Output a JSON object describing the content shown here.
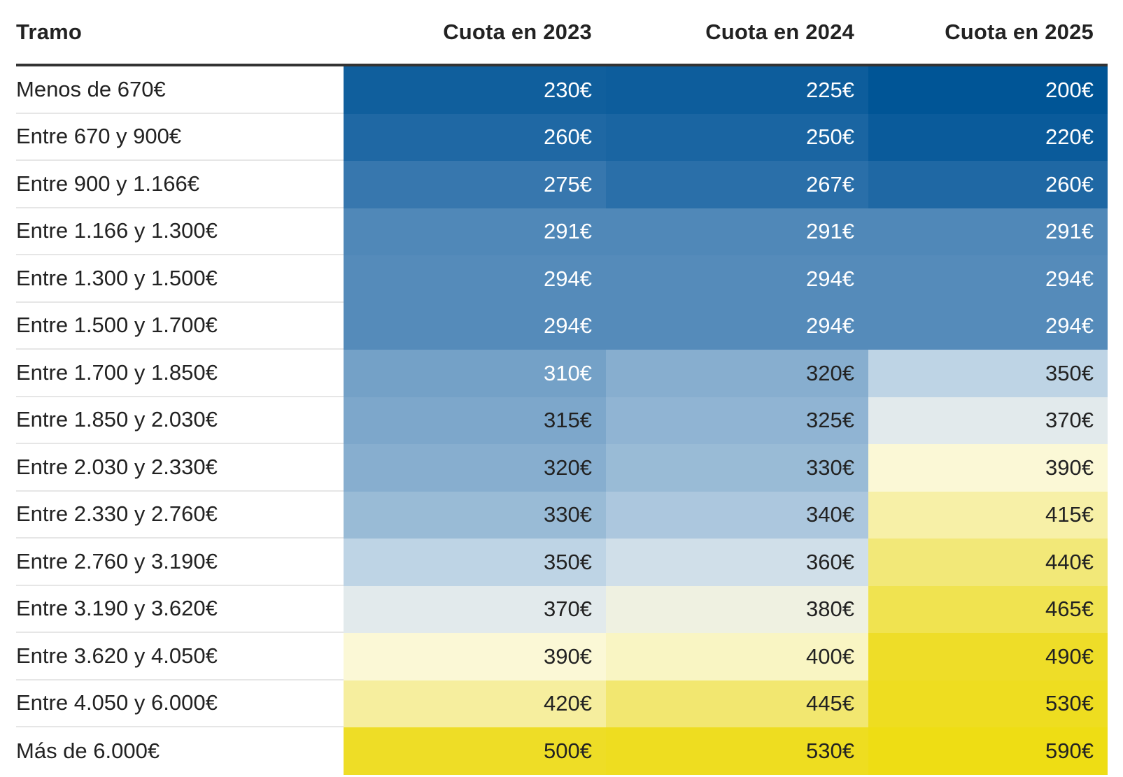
{
  "chart_data": {
    "type": "heatmap",
    "columns": [
      "Tramo",
      "Cuota en 2023",
      "Cuota en 2024",
      "Cuota en 2025"
    ],
    "rows": [
      {
        "label": "Menos de 670€",
        "values": [
          230,
          225,
          200
        ],
        "display": [
          "230€",
          "225€",
          "200€"
        ]
      },
      {
        "label": "Entre 670 y 900€",
        "values": [
          260,
          250,
          220
        ],
        "display": [
          "260€",
          "250€",
          "220€"
        ]
      },
      {
        "label": "Entre 900 y 1.166€",
        "values": [
          275,
          267,
          260
        ],
        "display": [
          "275€",
          "267€",
          "260€"
        ]
      },
      {
        "label": "Entre 1.166 y 1.300€",
        "values": [
          291,
          291,
          291
        ],
        "display": [
          "291€",
          "291€",
          "291€"
        ]
      },
      {
        "label": "Entre 1.300 y 1.500€",
        "values": [
          294,
          294,
          294
        ],
        "display": [
          "294€",
          "294€",
          "294€"
        ]
      },
      {
        "label": "Entre 1.500 y 1.700€",
        "values": [
          294,
          294,
          294
        ],
        "display": [
          "294€",
          "294€",
          "294€"
        ]
      },
      {
        "label": "Entre 1.700 y 1.850€",
        "values": [
          310,
          320,
          350
        ],
        "display": [
          "310€",
          "320€",
          "350€"
        ]
      },
      {
        "label": "Entre 1.850 y 2.030€",
        "values": [
          315,
          325,
          370
        ],
        "display": [
          "315€",
          "325€",
          "370€"
        ]
      },
      {
        "label": "Entre 2.030 y 2.330€",
        "values": [
          320,
          330,
          390
        ],
        "display": [
          "320€",
          "330€",
          "390€"
        ]
      },
      {
        "label": "Entre 2.330 y 2.760€",
        "values": [
          330,
          340,
          415
        ],
        "display": [
          "330€",
          "340€",
          "415€"
        ]
      },
      {
        "label": "Entre 2.760 y 3.190€",
        "values": [
          350,
          360,
          440
        ],
        "display": [
          "350€",
          "360€",
          "440€"
        ]
      },
      {
        "label": "Entre 3.190 y 3.620€",
        "values": [
          370,
          380,
          465
        ],
        "display": [
          "370€",
          "380€",
          "465€"
        ]
      },
      {
        "label": "Entre 3.620 y 4.050€",
        "values": [
          390,
          400,
          490
        ],
        "display": [
          "390€",
          "400€",
          "490€"
        ]
      },
      {
        "label": "Entre 4.050 y 6.000€",
        "values": [
          420,
          445,
          530
        ],
        "display": [
          "420€",
          "445€",
          "530€"
        ]
      },
      {
        "label": "Más de 6.000€",
        "values": [
          500,
          530,
          590
        ],
        "display": [
          "500€",
          "530€",
          "590€"
        ]
      }
    ],
    "color_stops": [
      {
        "value": 200,
        "color": "#005596"
      },
      {
        "value": 260,
        "color": "#1f68a4"
      },
      {
        "value": 294,
        "color": "#558bba"
      },
      {
        "value": 320,
        "color": "#87aecf"
      },
      {
        "value": 350,
        "color": "#bed4e5"
      },
      {
        "value": 370,
        "color": "#e2eaec"
      },
      {
        "value": 390,
        "color": "#fbf8d6"
      },
      {
        "value": 440,
        "color": "#f2e878"
      },
      {
        "value": 490,
        "color": "#eedd28"
      },
      {
        "value": 590,
        "color": "#eedd14"
      }
    ],
    "light_text_color": "#ffffff",
    "dark_text_color": "#222222",
    "header_rule_color": "#333333"
  }
}
